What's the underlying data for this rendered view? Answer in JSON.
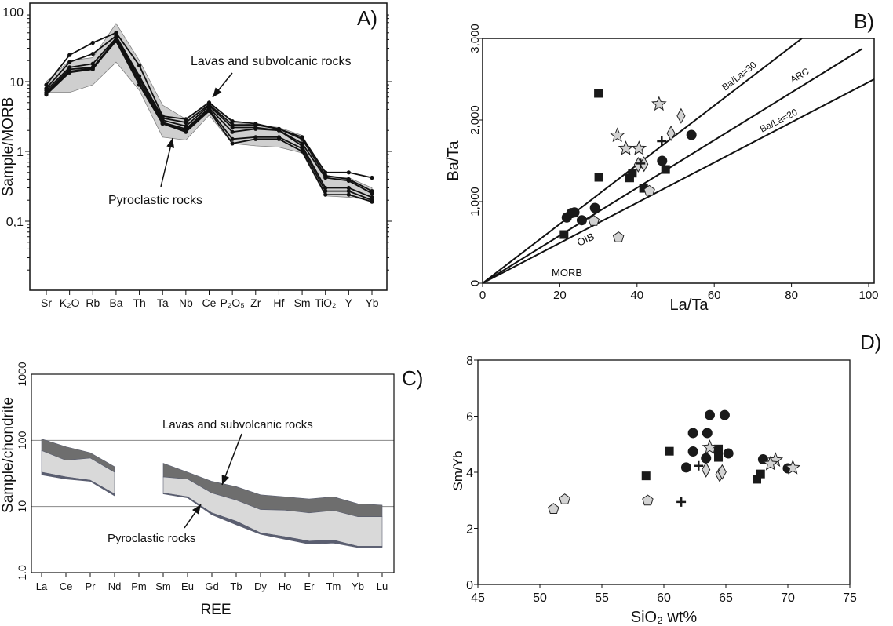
{
  "chart_data": [
    {
      "panel": "A)",
      "type": "line",
      "ylabel": "Sample/MORB",
      "yscale": "log",
      "ylim": [
        0.01,
        100
      ],
      "yticks": [
        "100",
        "10",
        "1",
        "0,1"
      ],
      "ytick_values": [
        100,
        10,
        1,
        0.1
      ],
      "categories": [
        "Sr",
        "K₂O",
        "Rb",
        "Ba",
        "Th",
        "Ta",
        "Nb",
        "Ce",
        "P₂O₅",
        "Zr",
        "Hf",
        "Sm",
        "TiO₂",
        "Y",
        "Yb"
      ],
      "band": {
        "upper": [
          10,
          20,
          22,
          68,
          20,
          4.6,
          2.9,
          5.2,
          2.6,
          2.4,
          2.2,
          1.7,
          0.45,
          0.42,
          0.3
        ],
        "lower": [
          7,
          7,
          9,
          19,
          7.5,
          1.6,
          1.45,
          3.3,
          1.3,
          1.2,
          1.15,
          0.95,
          0.23,
          0.22,
          0.2
        ],
        "color": "#cfcfcf"
      },
      "series": [
        {
          "values": [
            9,
            24,
            36,
            50,
            17,
            3.2,
            2.9,
            5.0,
            2.7,
            2.5,
            2.1,
            1.6,
            0.5,
            0.5,
            0.42
          ]
        },
        {
          "values": [
            8,
            19,
            25,
            45,
            12,
            3.0,
            2.6,
            4.7,
            2.4,
            2.4,
            2.1,
            1.5,
            0.45,
            0.4,
            0.27
          ]
        },
        {
          "values": [
            7.5,
            16,
            18,
            42,
            11,
            2.8,
            2.3,
            4.5,
            2.2,
            2.2,
            2.0,
            1.3,
            0.42,
            0.38,
            0.25
          ]
        },
        {
          "values": [
            7,
            15,
            16,
            40,
            10,
            2.6,
            2.1,
            4.2,
            1.9,
            2.1,
            2.0,
            1.2,
            0.3,
            0.3,
            0.22
          ]
        },
        {
          "values": [
            6.8,
            14,
            15.5,
            38,
            9,
            2.5,
            2.0,
            4.0,
            1.5,
            1.6,
            1.6,
            1.1,
            0.27,
            0.27,
            0.2
          ]
        },
        {
          "values": [
            6.5,
            13.5,
            15,
            40,
            9,
            2.5,
            1.9,
            3.8,
            1.3,
            1.5,
            1.5,
            1.0,
            0.24,
            0.24,
            0.19
          ]
        }
      ],
      "annotations": [
        "Lavas and subvolcanic rocks",
        "Pyroclastic rocks"
      ]
    },
    {
      "panel": "B)",
      "type": "scatter",
      "xlabel": "La/Ta",
      "ylabel": "Ba/Ta",
      "xlim": [
        0,
        100
      ],
      "ylim": [
        0,
        3000
      ],
      "xticks": [
        "0",
        "20",
        "40",
        "60",
        "80",
        "100"
      ],
      "xtick_values": [
        0,
        20,
        40,
        60,
        80,
        100
      ],
      "yticks": [
        "0",
        "1,000",
        "2,000",
        "3,000"
      ],
      "ytick_values": [
        0,
        1000,
        2000,
        3000
      ],
      "reference_lines": [
        {
          "label": "Ba/La=30",
          "from": [
            0,
            0
          ],
          "to": [
            82.7,
            3000
          ]
        },
        {
          "label": "ARC",
          "from": [
            0,
            0
          ],
          "to": [
            98.4,
            2875
          ]
        },
        {
          "label": "Ba/La=20",
          "from": [
            0,
            0
          ],
          "to": [
            101.4,
            2500
          ]
        }
      ],
      "field_labels": [
        "OIB",
        "MORB"
      ],
      "series": [
        {
          "marker": "square",
          "color": "#1a1a1a",
          "points": [
            [
              30.0,
              2327
            ],
            [
              30.1,
              1298
            ],
            [
              21.1,
              596
            ],
            [
              38.1,
              1291
            ],
            [
              38.8,
              1349
            ],
            [
              47.4,
              1394
            ],
            [
              41.7,
              1163
            ]
          ]
        },
        {
          "marker": "circle",
          "color": "#1a1a1a",
          "points": [
            [
              21.8,
              805
            ],
            [
              23.0,
              859
            ],
            [
              23.8,
              868
            ],
            [
              25.7,
              772
            ],
            [
              29.1,
              923
            ],
            [
              46.5,
              1500
            ],
            [
              54.1,
              1817
            ]
          ]
        },
        {
          "marker": "star",
          "color": "#d3d3d3",
          "points": [
            [
              45.7,
              2195
            ],
            [
              34.9,
              1811
            ],
            [
              37.1,
              1650
            ],
            [
              40.5,
              1650
            ]
          ]
        },
        {
          "marker": "diamond",
          "color": "#d3d3d3",
          "points": [
            [
              51.4,
              2051
            ],
            [
              48.8,
              1837
            ],
            [
              40.3,
              1452
            ],
            [
              41.8,
              1459
            ]
          ]
        },
        {
          "marker": "pentagon",
          "color": "#d3d3d3",
          "points": [
            [
              28.8,
              763
            ],
            [
              35.2,
              561
            ],
            [
              43.2,
              1131
            ]
          ]
        },
        {
          "marker": "cross",
          "color": "#1a1a1a",
          "points": [
            [
              46.4,
              1740
            ],
            [
              40.9,
              1468
            ]
          ]
        }
      ]
    },
    {
      "panel": "C)",
      "type": "area",
      "xlabel": "REE",
      "ylabel": "Sample/chondrite",
      "yscale": "log",
      "ylim": [
        1,
        1000
      ],
      "yticks": [
        "1.0",
        "10",
        "100",
        "1000"
      ],
      "ytick_values": [
        1,
        10,
        100,
        1000
      ],
      "gridlines": [
        10,
        100
      ],
      "categories": [
        "La",
        "Ce",
        "Pr",
        "Nd",
        "Pm",
        "Sm",
        "Eu",
        "Gd",
        "Tb",
        "Dy",
        "Ho",
        "Er",
        "Tm",
        "Yb",
        "Lu"
      ],
      "series": [
        {
          "fill": "#6e6e6e",
          "upper": [
            105,
            80,
            65,
            40,
            null,
            45,
            33,
            24,
            20,
            15,
            14,
            13,
            14,
            11,
            10.5
          ],
          "lower": [
            70,
            50,
            54,
            33,
            null,
            28,
            26,
            16,
            12.5,
            9,
            8.8,
            8,
            8.7,
            7,
            7
          ]
        },
        {
          "fill": "#d9d9d9",
          "upper": [
            70,
            50,
            54,
            33,
            null,
            28,
            26,
            16,
            12.5,
            9,
            8.8,
            8,
            8.7,
            7,
            7
          ],
          "lower": [
            33,
            28,
            25,
            15.5,
            null,
            16,
            14,
            8,
            6,
            4,
            3.5,
            3,
            3.1,
            2.5,
            2.5
          ]
        },
        {
          "fill": "#5a5e70",
          "upper": [
            33,
            28,
            25,
            15.5,
            null,
            16,
            14,
            8,
            6,
            4,
            3.5,
            3,
            3.1,
            2.5,
            2.5
          ],
          "lower": [
            30,
            26,
            24,
            14.5,
            null,
            15.5,
            13.5,
            7.5,
            5.3,
            3.8,
            3.2,
            2.7,
            2.8,
            2.4,
            2.4
          ]
        }
      ],
      "annotations": [
        "Lavas and subvolcanic rocks",
        "Pyroclastic rocks"
      ]
    },
    {
      "panel": "D)",
      "type": "scatter",
      "xlabel": "SiO₂ wt%",
      "ylabel": "Sm/Yb",
      "xlim": [
        45,
        75
      ],
      "ylim": [
        0,
        8
      ],
      "xticks": [
        "45",
        "50",
        "55",
        "60",
        "65",
        "70",
        "75"
      ],
      "xtick_values": [
        45,
        50,
        55,
        60,
        65,
        70,
        75
      ],
      "yticks": [
        "0",
        "2",
        "4",
        "6",
        "8"
      ],
      "ytick_values": [
        0,
        2,
        4,
        6,
        8
      ],
      "series": [
        {
          "marker": "circle",
          "color": "#1a1a1a",
          "points": [
            [
              63.7,
              6.04
            ],
            [
              64.9,
              6.04
            ],
            [
              62.35,
              5.4
            ],
            [
              63.5,
              5.4
            ],
            [
              62.35,
              4.74
            ],
            [
              65.2,
              4.67
            ],
            [
              61.8,
              4.17
            ],
            [
              63.4,
              4.5
            ],
            [
              68.0,
              4.46
            ],
            [
              70.0,
              4.14
            ]
          ]
        },
        {
          "marker": "square",
          "color": "#1a1a1a",
          "points": [
            [
              60.45,
              4.75
            ],
            [
              58.56,
              3.87
            ],
            [
              64.4,
              4.83
            ],
            [
              64.4,
              4.53
            ],
            [
              67.8,
              3.94
            ],
            [
              67.5,
              3.75
            ]
          ]
        },
        {
          "marker": "star",
          "color": "#d3d3d3",
          "points": [
            [
              63.7,
              4.88
            ],
            [
              69.0,
              4.43
            ],
            [
              68.6,
              4.3
            ],
            [
              70.4,
              4.16
            ]
          ]
        },
        {
          "marker": "diamond",
          "color": "#d3d3d3",
          "points": [
            [
              63.4,
              4.09
            ],
            [
              64.5,
              3.92
            ],
            [
              64.7,
              4.01
            ]
          ]
        },
        {
          "marker": "pentagon",
          "color": "#d3d3d3",
          "points": [
            [
              51.1,
              2.69
            ],
            [
              52.0,
              3.03
            ],
            [
              58.7,
              2.99
            ]
          ]
        },
        {
          "marker": "cross",
          "color": "#1a1a1a",
          "points": [
            [
              61.4,
              2.94
            ],
            [
              62.8,
              4.23
            ]
          ]
        }
      ]
    }
  ]
}
